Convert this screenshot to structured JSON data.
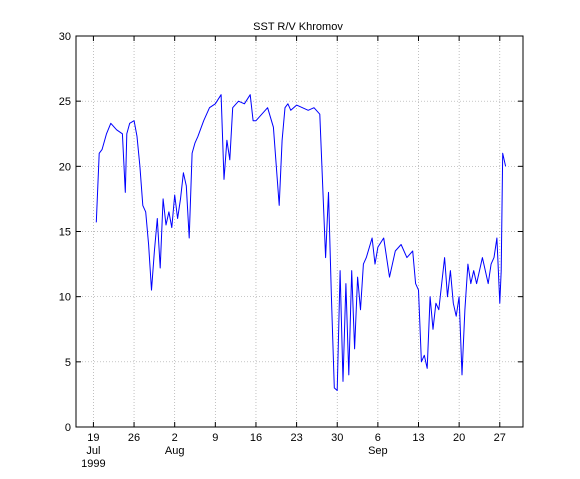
{
  "chart_data": {
    "type": "line",
    "title": "SST R/V Khromov",
    "xlabel": "",
    "ylabel": "",
    "ylim": [
      0,
      30
    ],
    "yticks": [
      0,
      5,
      10,
      15,
      20,
      25,
      30
    ],
    "xlim": [
      "1999-07-16",
      "1999-10-01"
    ],
    "grid": true,
    "series_color": "#0000ff",
    "x_tick_labels": [
      {
        "date": "1999-07-19",
        "day": "19",
        "month": "Jul",
        "year": "1999"
      },
      {
        "date": "1999-07-26",
        "day": "26",
        "month": "",
        "year": ""
      },
      {
        "date": "1999-08-02",
        "day": "2",
        "month": "Aug",
        "year": ""
      },
      {
        "date": "1999-08-09",
        "day": "9",
        "month": "",
        "year": ""
      },
      {
        "date": "1999-08-16",
        "day": "16",
        "month": "",
        "year": ""
      },
      {
        "date": "1999-08-23",
        "day": "23",
        "month": "",
        "year": ""
      },
      {
        "date": "1999-08-30",
        "day": "30",
        "month": "",
        "year": ""
      },
      {
        "date": "1999-09-06",
        "day": "6",
        "month": "Sep",
        "year": ""
      },
      {
        "date": "1999-09-13",
        "day": "13",
        "month": "",
        "year": ""
      },
      {
        "date": "1999-09-20",
        "day": "20",
        "month": "",
        "year": ""
      },
      {
        "date": "1999-09-27",
        "day": "27",
        "month": "",
        "year": ""
      }
    ],
    "series": [
      {
        "x": [
          "1999-07-19 12:00",
          "1999-07-20 00:00",
          "1999-07-20 12:00",
          "1999-07-21 06:00",
          "1999-07-22 00:00",
          "1999-07-23 00:00",
          "1999-07-24 00:00",
          "1999-07-24 12:00",
          "1999-07-24 18:00",
          "1999-07-25 06:00",
          "1999-07-26 00:00",
          "1999-07-26 12:00",
          "1999-07-27 00:00",
          "1999-07-27 12:00",
          "1999-07-28 00:00",
          "1999-07-28 12:00",
          "1999-07-29 00:00",
          "1999-07-29 12:00",
          "1999-07-30 00:00",
          "1999-07-30 12:00",
          "1999-07-31 00:00",
          "1999-07-31 12:00",
          "1999-08-01 00:00",
          "1999-08-01 12:00",
          "1999-08-02 00:00",
          "1999-08-02 12:00",
          "1999-08-03 00:00",
          "1999-08-03 12:00",
          "1999-08-04 00:00",
          "1999-08-04 12:00",
          "1999-08-05 00:00",
          "1999-08-05 12:00",
          "1999-08-06 00:00",
          "1999-08-07 00:00",
          "1999-08-08 00:00",
          "1999-08-09 00:00",
          "1999-08-10 00:00",
          "1999-08-10 12:00",
          "1999-08-11 00:00",
          "1999-08-11 12:00",
          "1999-08-12 00:00",
          "1999-08-13 00:00",
          "1999-08-14 00:00",
          "1999-08-15 00:00",
          "1999-08-15 12:00",
          "1999-08-16 00:00",
          "1999-08-17 00:00",
          "1999-08-18 00:00",
          "1999-08-19 00:00",
          "1999-08-20 00:00",
          "1999-08-20 12:00",
          "1999-08-21 00:00",
          "1999-08-21 12:00",
          "1999-08-22 00:00",
          "1999-08-23 00:00",
          "1999-08-24 00:00",
          "1999-08-25 00:00",
          "1999-08-26 00:00",
          "1999-08-27 00:00",
          "1999-08-28 00:00",
          "1999-08-28 12:00",
          "1999-08-29 00:00",
          "1999-08-29 12:00",
          "1999-08-30 00:00",
          "1999-08-30 12:00",
          "1999-08-31 00:00",
          "1999-08-31 12:00",
          "1999-09-01 00:00",
          "1999-09-01 12:00",
          "1999-09-02 00:00",
          "1999-09-02 12:00",
          "1999-09-03 00:00",
          "1999-09-03 12:00",
          "1999-09-04 00:00",
          "1999-09-05 00:00",
          "1999-09-05 12:00",
          "1999-09-06 00:00",
          "1999-09-07 00:00",
          "1999-09-08 00:00",
          "1999-09-09 00:00",
          "1999-09-10 00:00",
          "1999-09-11 00:00",
          "1999-09-12 00:00",
          "1999-09-12 12:00",
          "1999-09-13 00:00",
          "1999-09-13 12:00",
          "1999-09-14 00:00",
          "1999-09-14 12:00",
          "1999-09-15 00:00",
          "1999-09-15 12:00",
          "1999-09-16 00:00",
          "1999-09-16 12:00",
          "1999-09-17 00:00",
          "1999-09-17 12:00",
          "1999-09-18 00:00",
          "1999-09-18 12:00",
          "1999-09-19 00:00",
          "1999-09-19 12:00",
          "1999-09-20 00:00",
          "1999-09-20 12:00",
          "1999-09-21 00:00",
          "1999-09-21 12:00",
          "1999-09-22 00:00",
          "1999-09-22 12:00",
          "1999-09-23 00:00",
          "1999-09-24 00:00",
          "1999-09-25 00:00",
          "1999-09-25 12:00",
          "1999-09-26 00:00",
          "1999-09-26 12:00",
          "1999-09-27 00:00",
          "1999-09-27 06:00",
          "1999-09-27 12:00",
          "1999-09-28 00:00"
        ],
        "values": [
          15.7,
          21.0,
          21.3,
          22.5,
          23.3,
          22.8,
          22.5,
          18.0,
          22.5,
          23.3,
          23.5,
          22.3,
          20.0,
          17.0,
          16.5,
          14.0,
          10.5,
          13.5,
          16.0,
          12.2,
          17.5,
          15.5,
          16.5,
          15.3,
          17.8,
          16.0,
          17.5,
          19.5,
          18.5,
          14.5,
          21.0,
          21.8,
          22.3,
          23.5,
          24.5,
          24.8,
          25.5,
          19.0,
          22.0,
          20.5,
          24.5,
          25.0,
          24.8,
          25.5,
          23.5,
          23.5,
          24.0,
          24.5,
          23.0,
          17.0,
          22.0,
          24.5,
          24.8,
          24.3,
          24.7,
          24.5,
          24.3,
          24.5,
          24.0,
          13.0,
          18.0,
          10.0,
          3.0,
          2.8,
          12.0,
          3.5,
          11.0,
          4.0,
          12.0,
          6.0,
          11.5,
          9.0,
          12.5,
          13.0,
          14.5,
          12.5,
          13.8,
          14.5,
          11.5,
          13.5,
          14.0,
          13.0,
          13.5,
          11.0,
          10.5,
          5.0,
          5.5,
          4.5,
          10.0,
          7.5,
          9.5,
          9.0,
          11.0,
          13.0,
          10.0,
          12.0,
          9.5,
          8.5,
          10.0,
          4.0,
          9.0,
          12.5,
          11.0,
          12.0,
          11.0,
          13.0,
          11.0,
          12.5,
          13.0,
          14.5,
          9.5,
          12.0,
          21.0,
          20.0
        ]
      }
    ]
  }
}
